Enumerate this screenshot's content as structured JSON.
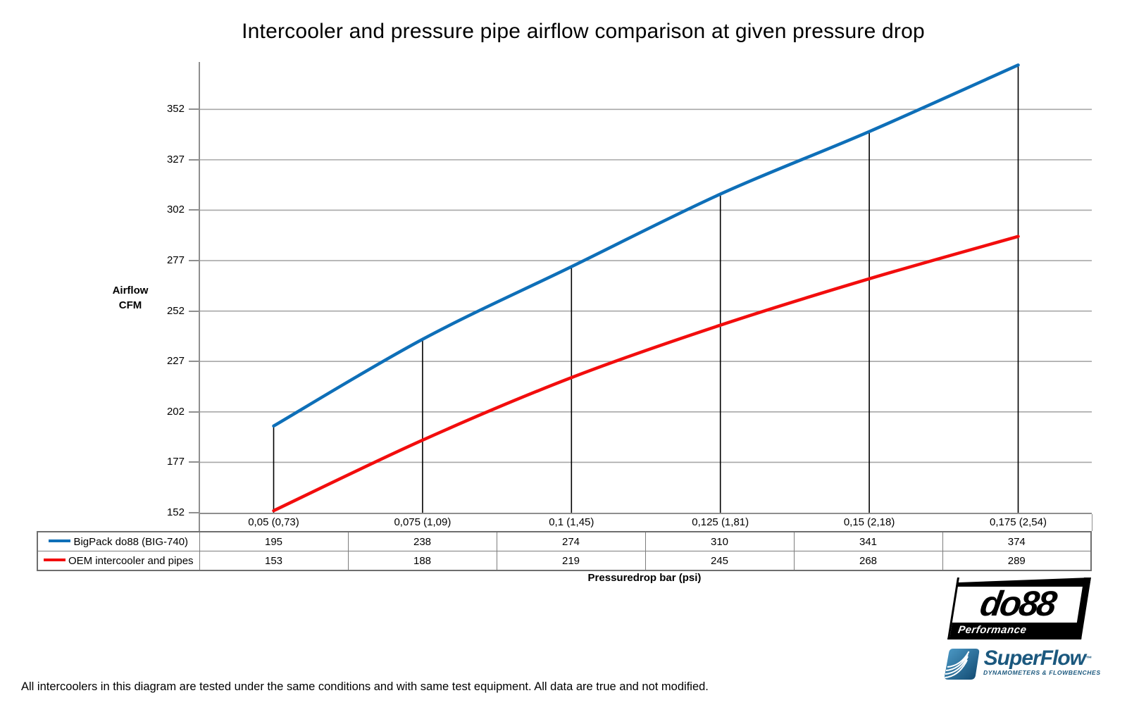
{
  "title": "Intercooler and pressure pipe airflow comparison at given pressure drop",
  "y_axis": {
    "title_lines": [
      "Airflow",
      "CFM"
    ],
    "ticks": [
      352,
      327,
      302,
      277,
      252,
      227,
      202,
      177,
      152
    ]
  },
  "x_axis": {
    "title": "Pressuredrop bar (psi)"
  },
  "chart_data": {
    "type": "line",
    "title": "Intercooler and pressure pipe airflow comparison at given pressure drop",
    "xlabel": "Pressuredrop bar (psi)",
    "ylabel": "Airflow CFM",
    "categories": [
      "0,05 (0,73)",
      "0,075 (1,09)",
      "0,1 (1,45)",
      "0,125 (1,81)",
      "0,15 (2,18)",
      "0,175 (2,54)"
    ],
    "series": [
      {
        "name": "BigPack do88 (BIG-740)",
        "color": "#0E6FB8",
        "values": [
          195,
          238,
          274,
          310,
          341,
          374
        ]
      },
      {
        "name": "OEM intercooler and pipes",
        "color": "#F20D0D",
        "values": [
          153,
          188,
          219,
          245,
          268,
          289
        ]
      }
    ],
    "ylim": [
      152,
      375.5
    ],
    "ytick_step": 25,
    "grid": "horizontal-only",
    "gridline_color": "#A8A8A8",
    "drop_lines": true,
    "drop_line_color": "#000000",
    "legend_position": "table-rows-left"
  },
  "logos": {
    "do88": {
      "name": "do88",
      "tagline": "Performance"
    },
    "superflow": {
      "name": "SuperFlow",
      "trademark": "™",
      "tagline": "DYNAMOMETERS & FLOWBENCHES",
      "color": "#1B587E"
    }
  },
  "footnote": "All intercoolers in this diagram are tested under the same conditions and with same test equipment. All data are true and not modified."
}
